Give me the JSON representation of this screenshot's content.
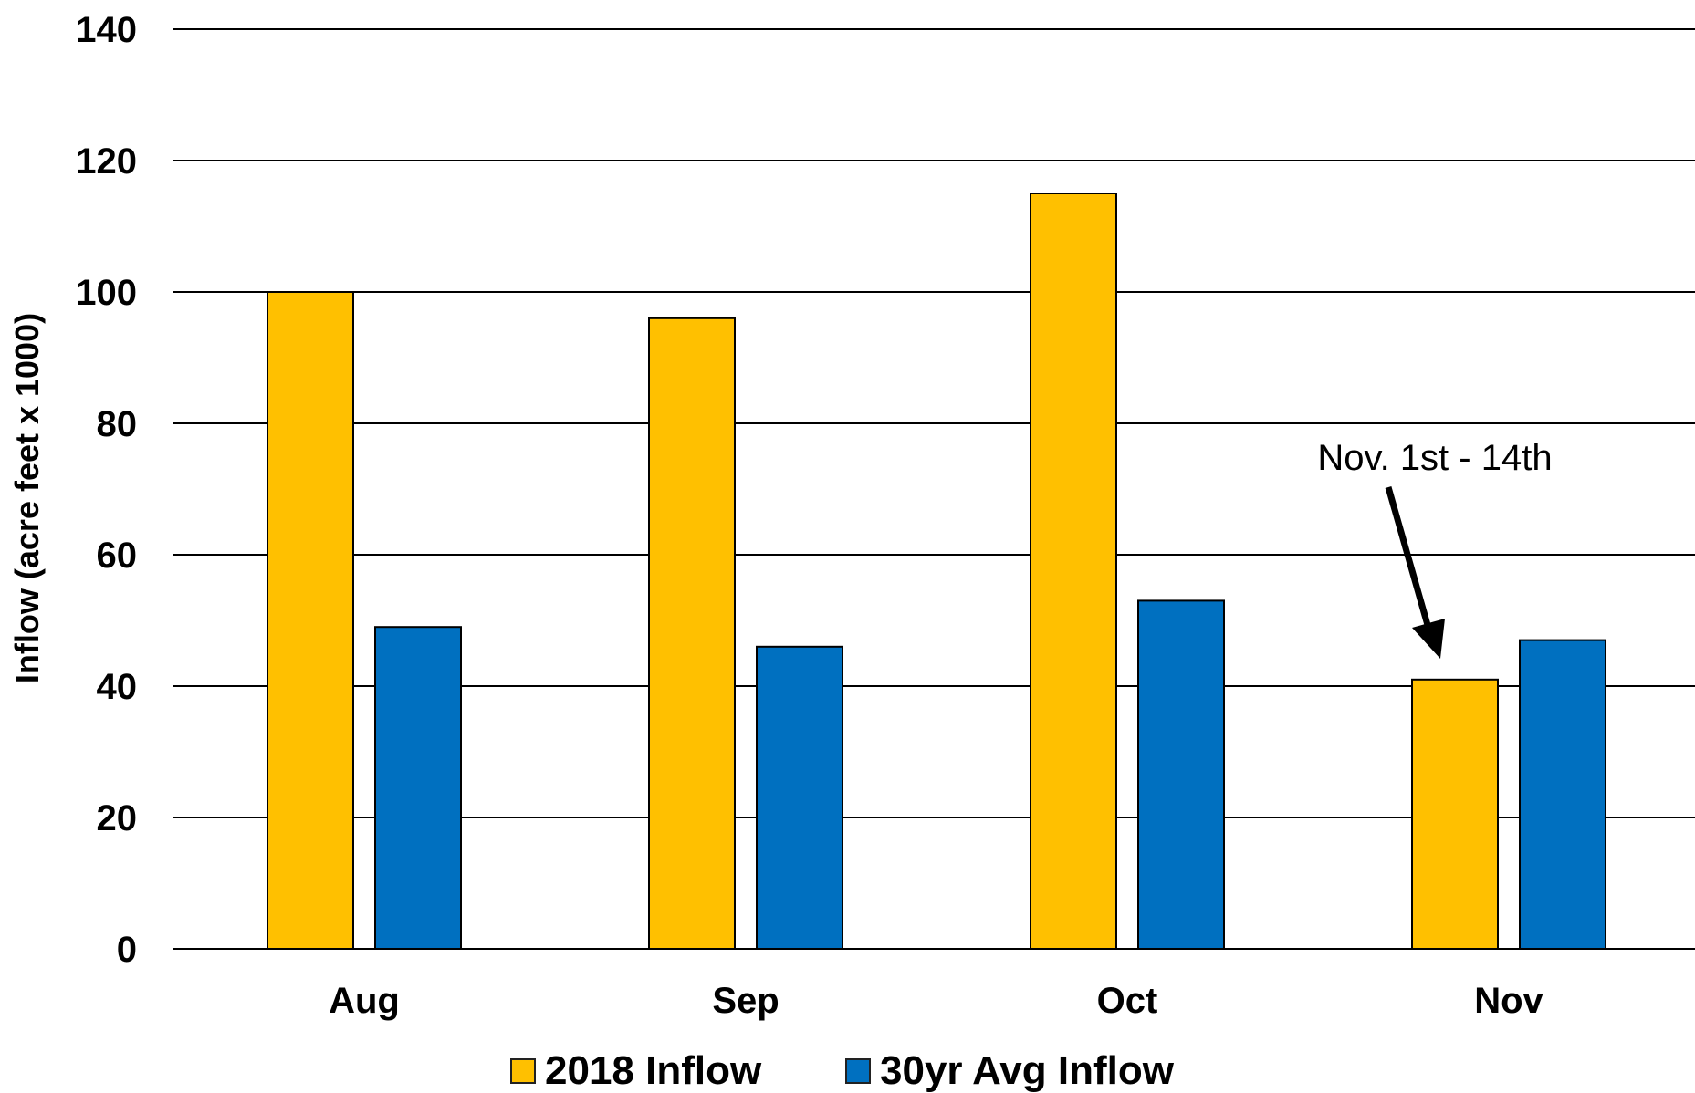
{
  "chart_data": {
    "type": "bar",
    "title": "",
    "xlabel": "",
    "ylabel": "Inflow (acre feet x 1000)",
    "ylim": [
      0,
      140
    ],
    "yticks": [
      0,
      20,
      40,
      60,
      80,
      100,
      120,
      140
    ],
    "grid": true,
    "legend_position": "bottom",
    "categories": [
      "Aug",
      "Sep",
      "Oct",
      "Nov"
    ],
    "series": [
      {
        "name": "2018 Inflow",
        "color": "#FFC000",
        "values": [
          100,
          96,
          115,
          41
        ]
      },
      {
        "name": "30yr Avg Inflow",
        "color": "#0070C0",
        "values": [
          49,
          46,
          53,
          47
        ]
      }
    ],
    "annotations": [
      {
        "text": "Nov. 1st - 14th",
        "category": "Nov",
        "series": "2018 Inflow",
        "arrow": true
      }
    ]
  }
}
